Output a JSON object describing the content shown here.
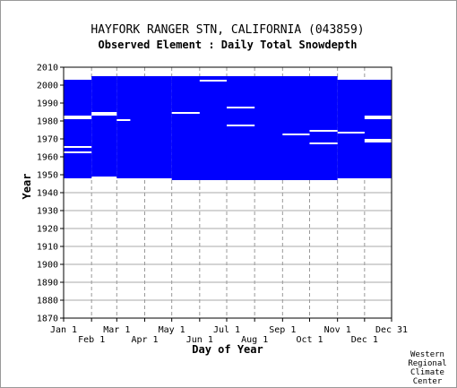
{
  "chart_data": {
    "type": "coverage",
    "title": "HAYFORK RANGER STN, CALIFORNIA   (043859)",
    "subtitle": "Observed Element : Daily Total Snowdepth",
    "x_label": "Day of Year",
    "y_label": "Year",
    "credit_lines": [
      "Western",
      "Regional",
      "Climate",
      "Center"
    ],
    "color": "#0000ff",
    "xlim": [
      1,
      365
    ],
    "xticks": [
      {
        "value": 1,
        "label": "Jan 1"
      },
      {
        "value": 32,
        "label": "Feb 1"
      },
      {
        "value": 60,
        "label": "Mar 1"
      },
      {
        "value": 91,
        "label": "Apr 1"
      },
      {
        "value": 121,
        "label": "May 1"
      },
      {
        "value": 152,
        "label": "Jun 1"
      },
      {
        "value": 182,
        "label": "Jul 1"
      },
      {
        "value": 213,
        "label": "Aug 1"
      },
      {
        "value": 244,
        "label": "Sep 1"
      },
      {
        "value": 274,
        "label": "Oct 1"
      },
      {
        "value": 305,
        "label": "Nov 1"
      },
      {
        "value": 335,
        "label": "Dec 1"
      },
      {
        "value": 365,
        "label": "Dec 31"
      }
    ],
    "ylim": [
      1870,
      2010
    ],
    "yticks": [
      1870,
      1880,
      1890,
      1900,
      1910,
      1920,
      1930,
      1940,
      1950,
      1960,
      1970,
      1980,
      1990,
      2000,
      2010
    ],
    "blocks": [
      {
        "days": [
          1,
          32
        ],
        "years": [
          1948,
          2003
        ]
      },
      {
        "days": [
          32,
          60
        ],
        "years": [
          1949,
          2005
        ]
      },
      {
        "days": [
          60,
          121
        ],
        "years": [
          1948,
          2005
        ]
      },
      {
        "days": [
          121,
          182
        ],
        "years": [
          1947,
          2005
        ]
      },
      {
        "days": [
          182,
          305
        ],
        "years": [
          1947,
          2005
        ]
      },
      {
        "days": [
          305,
          365
        ],
        "years": [
          1948,
          2003
        ]
      }
    ],
    "gaps": [
      {
        "days": [
          1,
          32
        ],
        "years": [
          1981,
          1983
        ]
      },
      {
        "days": [
          1,
          32
        ],
        "years": [
          1965,
          1966
        ]
      },
      {
        "days": [
          1,
          32
        ],
        "years": [
          1962,
          1963
        ]
      },
      {
        "days": [
          32,
          60
        ],
        "years": [
          1983,
          1985
        ]
      },
      {
        "days": [
          60,
          75
        ],
        "years": [
          1980,
          1981
        ]
      },
      {
        "days": [
          121,
          152
        ],
        "years": [
          1984,
          1985
        ]
      },
      {
        "days": [
          152,
          182
        ],
        "years": [
          2002,
          2003
        ]
      },
      {
        "days": [
          182,
          213
        ],
        "years": [
          1987,
          1988
        ]
      },
      {
        "days": [
          182,
          213
        ],
        "years": [
          1977,
          1978
        ]
      },
      {
        "days": [
          244,
          274
        ],
        "years": [
          1972,
          1973
        ]
      },
      {
        "days": [
          274,
          305
        ],
        "years": [
          1974,
          1975
        ]
      },
      {
        "days": [
          274,
          305
        ],
        "years": [
          1967,
          1968
        ]
      },
      {
        "days": [
          305,
          335
        ],
        "years": [
          1973,
          1974
        ]
      },
      {
        "days": [
          335,
          365
        ],
        "years": [
          1968,
          1970
        ]
      },
      {
        "days": [
          335,
          365
        ],
        "years": [
          1981,
          1983
        ]
      }
    ]
  }
}
